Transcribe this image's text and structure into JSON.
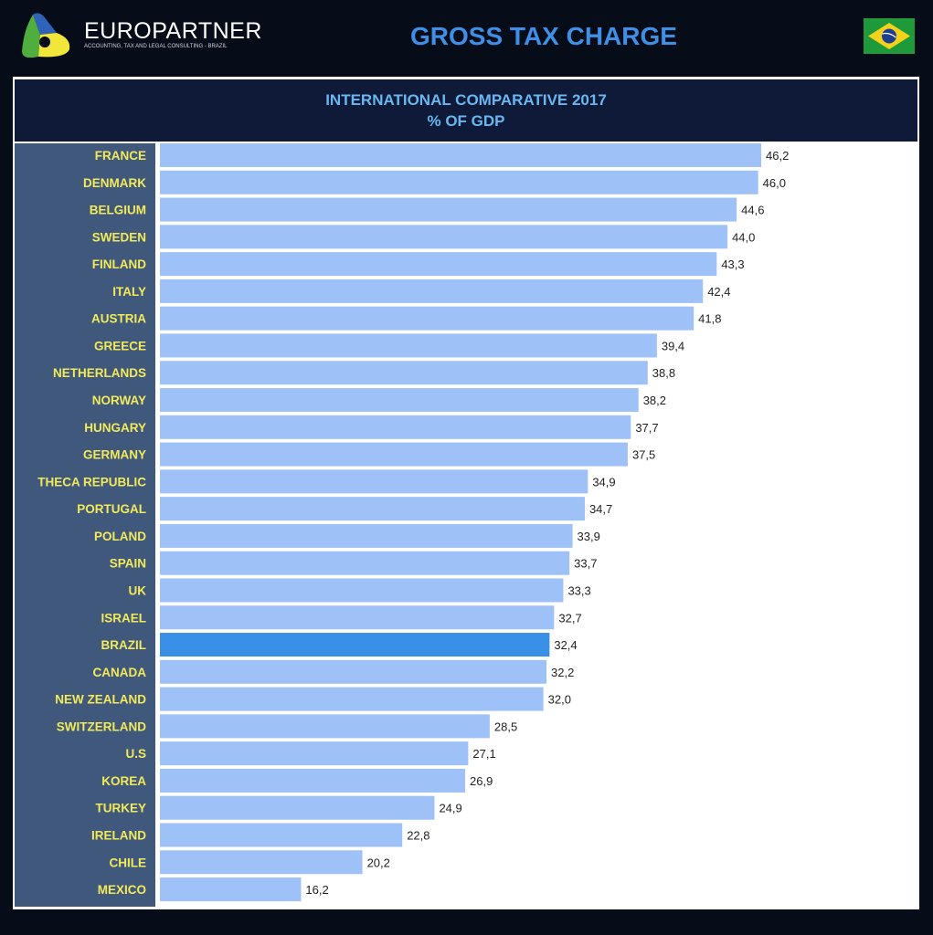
{
  "header": {
    "brand": "EUROPARTNER",
    "tagline": "ACCOUNTING, TAX AND LEGAL CONSULTING - BRAZIL",
    "title": "GROSS TAX CHARGE",
    "flag_icon": "brazil-flag"
  },
  "chart_data": {
    "type": "bar",
    "orientation": "horizontal",
    "title": "INTERNATIONAL COMPARATIVE 2017",
    "subtitle": "% OF GDP",
    "categories": [
      "FRANCE",
      "DENMARK",
      "BELGIUM",
      "SWEDEN",
      "FINLAND",
      "ITALY",
      "AUSTRIA",
      "GREECE",
      "NETHERLANDS",
      "NORWAY",
      "HUNGARY",
      "GERMANY",
      "THECA REPUBLIC",
      "PORTUGAL",
      "POLAND",
      "SPAIN",
      "UK",
      "ISRAEL",
      "BRAZIL",
      "CANADA",
      "NEW ZEALAND",
      "SWITZERLAND",
      "U.S",
      "KOREA",
      "TURKEY",
      "IRELAND",
      "CHILE",
      "MEXICO"
    ],
    "values": [
      46.2,
      46.0,
      44.6,
      44.0,
      43.3,
      42.4,
      41.8,
      39.4,
      38.8,
      38.2,
      37.7,
      37.5,
      34.9,
      34.7,
      33.9,
      33.7,
      33.3,
      32.7,
      32.4,
      32.2,
      32.0,
      28.5,
      27.1,
      26.9,
      24.9,
      22.8,
      20.2,
      16.2
    ],
    "value_labels": [
      "46,2",
      "46,0",
      "44,6",
      "44,0",
      "43,3",
      "42,4",
      "41,8",
      "39,4",
      "38,8",
      "38,2",
      "37,7",
      "37,5",
      "34,9",
      "34,7",
      "33,9",
      "33,7",
      "33,3",
      "32,7",
      "32,4",
      "32,2",
      "32,0",
      "28,5",
      "27,1",
      "26,9",
      "24,9",
      "22,8",
      "20,2",
      "16,2"
    ],
    "highlight": "BRAZIL",
    "colors": {
      "bar": "#9ec1f7",
      "highlight": "#3a8fe6",
      "label": "#f3ea5a",
      "label_bg": "#3f587c"
    },
    "grid": false,
    "legend": "none"
  }
}
